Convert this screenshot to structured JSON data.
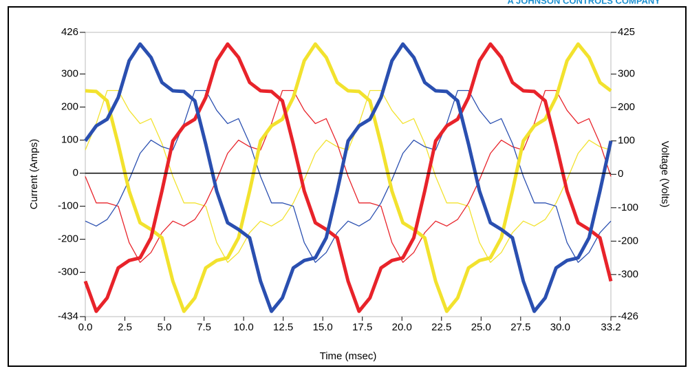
{
  "brand": "A JOHNSON CONTROLS COMPANY",
  "chart_data": {
    "type": "line",
    "xlabel": "Time (msec)",
    "ylabel": "Current (Amps)",
    "y2label": "Voltage (Volts)",
    "x": [
      0,
      0.69,
      1.38,
      2.08,
      2.77,
      3.46,
      4.15,
      4.84,
      5.53,
      6.23,
      6.92,
      7.61,
      8.3,
      8.99,
      9.68,
      10.38,
      11.07,
      11.76,
      12.45,
      13.14,
      13.83,
      14.53,
      15.22,
      15.91,
      16.6,
      17.29,
      17.98,
      18.68,
      19.37,
      20.06,
      20.75,
      21.44,
      22.13,
      22.83,
      23.52,
      24.21,
      24.9,
      25.59,
      26.28,
      26.98,
      27.67,
      28.36,
      29.05,
      29.74,
      30.43,
      31.13,
      31.82,
      32.51,
      33.2
    ],
    "xlim": [
      0,
      33.2
    ],
    "xticks": [
      {
        "value": 0,
        "label": "0.0"
      },
      2.5,
      {
        "value": 5,
        "label": "5.0"
      },
      7.5,
      {
        "value": 10,
        "label": "10.0"
      },
      12.5,
      {
        "value": 15,
        "label": "15.0"
      },
      17.5,
      {
        "value": 20,
        "label": "20.0"
      },
      22.5,
      {
        "value": 25,
        "label": "25.0"
      },
      27.5,
      {
        "value": 30,
        "label": "30.0"
      },
      33.2
    ],
    "ylim": [
      -434,
      426
    ],
    "yticks": [
      426,
      300,
      200,
      100,
      0,
      -100,
      -200,
      -300,
      -434
    ],
    "y2lim": [
      -426,
      425
    ],
    "y2ticks": [
      425,
      300,
      200,
      100,
      0,
      -100,
      -200,
      -300,
      -426
    ],
    "zero_line": true,
    "series": [
      {
        "color": "#f2e22e",
        "axis": "y",
        "values": [
          70,
          150,
          250,
          250,
          190,
          150,
          165,
          90,
          -10,
          -90,
          -90,
          -100,
          -210,
          -270,
          -240,
          -180,
          -145,
          -160,
          -140,
          -90,
          -20,
          60,
          100,
          80,
          70,
          150,
          250,
          250,
          190,
          150,
          165,
          90,
          -10,
          -90,
          -90,
          -100,
          -210,
          -270,
          -240,
          -180,
          -145,
          -160,
          -140,
          -90,
          -20,
          60,
          100,
          80,
          70
        ]
      },
      {
        "color": "#e8232a",
        "axis": "y",
        "values": [
          -10,
          -90,
          -90,
          -100,
          -210,
          -270,
          -240,
          -180,
          -145,
          -160,
          -140,
          -90,
          -20,
          60,
          100,
          80,
          70,
          150,
          250,
          250,
          190,
          150,
          165,
          90,
          -10,
          -90,
          -90,
          -100,
          -210,
          -270,
          -240,
          -180,
          -145,
          -160,
          -140,
          -90,
          -20,
          60,
          100,
          80,
          70,
          150,
          250,
          250,
          190,
          150,
          165,
          90,
          -10
        ]
      },
      {
        "color": "#2a4fb0",
        "axis": "y",
        "values": [
          -145,
          -160,
          -140,
          -90,
          -20,
          60,
          100,
          80,
          70,
          150,
          250,
          250,
          190,
          150,
          165,
          90,
          -10,
          -90,
          -90,
          -100,
          -210,
          -270,
          -240,
          -180,
          -145,
          -160,
          -140,
          -90,
          -20,
          60,
          100,
          80,
          70,
          150,
          250,
          250,
          190,
          150,
          165,
          90,
          -10,
          -90,
          -90,
          -100,
          -210,
          -270,
          -240,
          -180,
          -145
        ]
      },
      {
        "color": "#f2e22e",
        "axis": "y2",
        "values": [
          250,
          248,
          220,
          90,
          -50,
          -145,
          -165,
          -190,
          -320,
          -410,
          -370,
          -280,
          -258,
          -250,
          -190,
          -50,
          100,
          145,
          165,
          230,
          340,
          390,
          350,
          275,
          250,
          248,
          220,
          90,
          -50,
          -145,
          -165,
          -190,
          -320,
          -410,
          -370,
          -280,
          -258,
          -250,
          -190,
          -50,
          100,
          145,
          165,
          230,
          340,
          390,
          350,
          275,
          250
        ]
      },
      {
        "color": "#e8232a",
        "axis": "y2",
        "values": [
          -320,
          -410,
          -370,
          -280,
          -258,
          -250,
          -190,
          -50,
          100,
          145,
          165,
          230,
          340,
          390,
          350,
          275,
          250,
          248,
          220,
          90,
          -50,
          -145,
          -165,
          -190,
          -320,
          -410,
          -370,
          -280,
          -258,
          -250,
          -190,
          -50,
          100,
          145,
          165,
          230,
          340,
          390,
          350,
          275,
          250,
          248,
          220,
          90,
          -50,
          -145,
          -165,
          -190,
          -320
        ]
      },
      {
        "color": "#2a4fb0",
        "axis": "y2",
        "values": [
          100,
          145,
          165,
          230,
          340,
          390,
          350,
          275,
          250,
          248,
          220,
          90,
          -50,
          -145,
          -165,
          -190,
          -320,
          -410,
          -370,
          -280,
          -258,
          -250,
          -190,
          -50,
          100,
          145,
          165,
          230,
          340,
          390,
          350,
          275,
          250,
          248,
          220,
          90,
          -50,
          -145,
          -165,
          -190,
          -320,
          -410,
          -370,
          -280,
          -258,
          -250,
          -190,
          -50,
          100
        ]
      }
    ]
  }
}
